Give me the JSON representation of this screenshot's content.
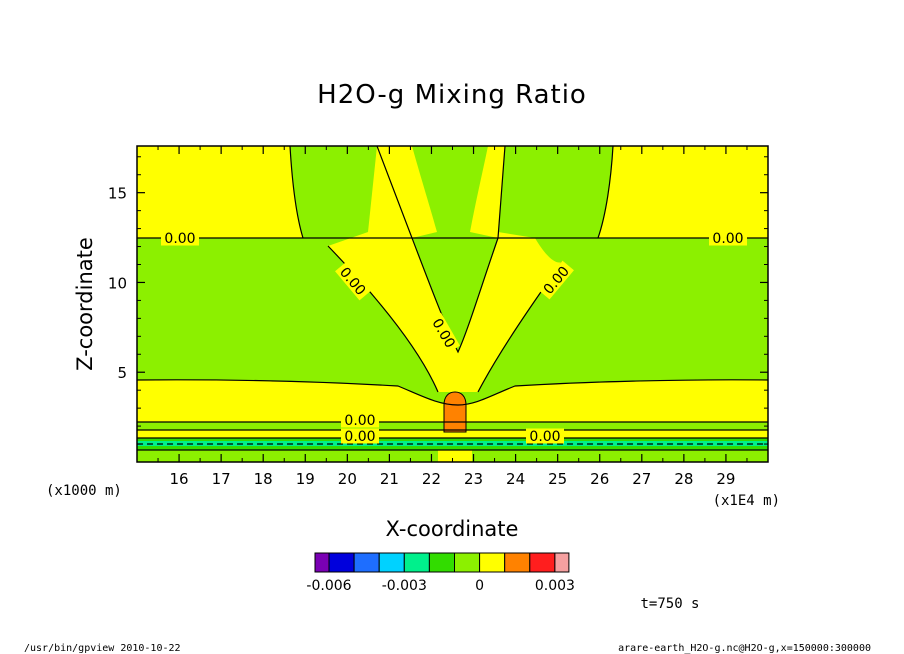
{
  "chart_data": {
    "type": "heatmap",
    "title": "H2O-g Mixing Ratio",
    "xlabel": "X-coordinate",
    "ylabel": "Z-coordinate",
    "x_unit": "(x1E4 m)",
    "y_unit": "(x1000 m)",
    "xlim": [
      15.0,
      30.0
    ],
    "ylim": [
      0.0,
      17.6
    ],
    "x_ticks": [
      "16",
      "17",
      "18",
      "19",
      "20",
      "21",
      "22",
      "23",
      "24",
      "25",
      "26",
      "27",
      "28",
      "29"
    ],
    "y_ticks": [
      "5",
      "10",
      "15"
    ],
    "contour_labels": [
      "0.00",
      "0.00",
      "0.00",
      "0.00",
      "0.00",
      "0.00",
      "0.00",
      "0.00"
    ],
    "colorbar": {
      "colors": [
        "#7a00b4",
        "#0000dc",
        "#1e6eff",
        "#00d2ff",
        "#00f08c",
        "#32dc00",
        "#8cf000",
        "#ffff00",
        "#ff8200",
        "#ff1e1e",
        "#f5a0a0"
      ],
      "tick_labels": [
        "-0.006",
        "-0.003",
        "0",
        "0.003"
      ],
      "tick_values": [
        -0.006,
        -0.003,
        0,
        0.003
      ]
    },
    "time_label": "t=750 s"
  },
  "footer": {
    "left": "/usr/bin/gpview  2010-10-22",
    "right": "arare-earth_H2O-g.nc@H2O-g,x=150000:300000"
  }
}
